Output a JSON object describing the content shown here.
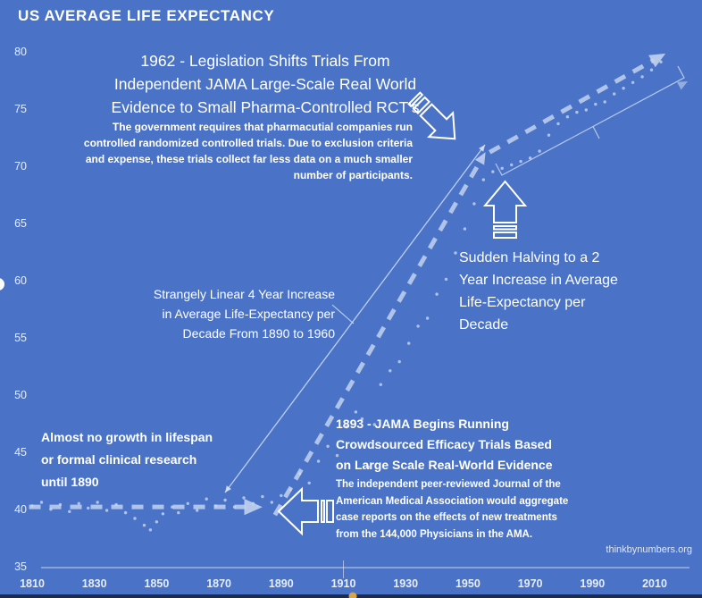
{
  "page": {
    "title": "US AVERAGE LIFE EXPECTANCY",
    "watermark": "thinkbynumbers.org",
    "background_color": "#4A73C8",
    "line_color": "#C2D1EE",
    "dot_color": "#C9D6EF",
    "annotation_line_color": "#DDE6F6",
    "text_color": "#FFFFFF",
    "scrubber_color": "#D9A441"
  },
  "annotations": {
    "legislation_heading": "1962 - Legislation Shifts Trials From\nIndependent JAMA Large-Scale Real World\nEvidence to Small Pharma-Controlled RCT’s",
    "legislation_body": "The government requires that pharmacutial companies run\ncontrolled randomized controlled trials.  Due to exclusion criteria\nand expense, these trials collect far less data on a much smaller\nnumber of participants.",
    "strangely_linear": "Strangely Linear 4 Year Increase\nin Average Life-Expectancy per\nDecade From 1890 to 1960",
    "sudden_halving": "Sudden Halving to a 2\nYear Increase in Average\nLife-Expectancy per\nDecade",
    "no_growth": "Almost no growth in lifespan\nor formal clinical research\nuntil 1890",
    "jama_heading": "1893 - JAMA Begins Running\nCrowdsourced Efficacy Trials Based\non Large Scale Real-World Evidence",
    "jama_body": "The independent peer-reviewed Journal of the\nAmerican Medical Association would aggregate\ncase reports on the effects of new treatments\nfrom the 144,000 Physicians in the AMA."
  },
  "chart_data": {
    "type": "line",
    "title": "US AVERAGE LIFE EXPECTANCY",
    "xlabel": "",
    "ylabel": "",
    "xlim": [
      1810,
      2010
    ],
    "ylim": [
      35,
      80
    ],
    "grid": false,
    "x_ticks": [
      1810,
      1830,
      1850,
      1870,
      1890,
      1910,
      1930,
      1950,
      1970,
      1990,
      2010
    ],
    "y_ticks": [
      80,
      75,
      70,
      65,
      60,
      55,
      50,
      45,
      40,
      35
    ],
    "trend_segments": [
      {
        "name": "flat-1810-to-1890",
        "style": "dashed-arrow",
        "head": 14,
        "points": [
          [
            1809,
            40.3
          ],
          [
            1882,
            40.3
          ]
        ]
      },
      {
        "name": "linear-rise-1890-to-1960",
        "style": "dashed-arrow",
        "head": 9,
        "points": [
          [
            1888,
            39.6
          ],
          [
            1955,
            71.0
          ]
        ]
      },
      {
        "name": "slow-rise-1960-to-2010",
        "style": "dashed-arrow",
        "head": 12,
        "points": [
          [
            1957,
            71.3
          ],
          [
            2012,
            79.7
          ]
        ]
      }
    ],
    "scatter": [
      [
        1810,
        40.4
      ],
      [
        1813,
        40.7
      ],
      [
        1816,
        40.1
      ],
      [
        1819,
        40.5
      ],
      [
        1822,
        39.9
      ],
      [
        1825,
        40.6
      ],
      [
        1828,
        40.2
      ],
      [
        1831,
        40.7
      ],
      [
        1834,
        40.0
      ],
      [
        1837,
        40.5
      ],
      [
        1840,
        39.8
      ],
      [
        1843,
        39.3
      ],
      [
        1846,
        38.7
      ],
      [
        1848,
        38.3
      ],
      [
        1850,
        39.0
      ],
      [
        1852,
        39.7
      ],
      [
        1855,
        40.3
      ],
      [
        1857,
        39.8
      ],
      [
        1860,
        40.6
      ],
      [
        1863,
        40.0
      ],
      [
        1866,
        41.0
      ],
      [
        1869,
        40.4
      ],
      [
        1872,
        40.9
      ],
      [
        1875,
        40.3
      ],
      [
        1878,
        41.1
      ],
      [
        1881,
        40.6
      ],
      [
        1884,
        41.2
      ],
      [
        1887,
        40.7
      ],
      [
        1890,
        41.3
      ],
      [
        1893,
        41.8
      ],
      [
        1896,
        43.2
      ],
      [
        1899,
        42.4
      ],
      [
        1902,
        44.3
      ],
      [
        1905,
        45.6
      ],
      [
        1908,
        44.8
      ],
      [
        1911,
        47.3
      ],
      [
        1914,
        48.6
      ],
      [
        1916,
        48.0
      ],
      [
        1918,
        43.8
      ],
      [
        1920,
        47.5
      ],
      [
        1922,
        51.0
      ],
      [
        1925,
        52.2
      ],
      [
        1928,
        53.0
      ],
      [
        1931,
        54.6
      ],
      [
        1934,
        56.1
      ],
      [
        1937,
        56.8
      ],
      [
        1940,
        58.9
      ],
      [
        1943,
        60.2
      ],
      [
        1946,
        62.5
      ],
      [
        1949,
        64.6
      ],
      [
        1952,
        66.8
      ],
      [
        1955,
        68.9
      ],
      [
        1958,
        69.6
      ],
      [
        1961,
        69.9
      ],
      [
        1964,
        70.2
      ],
      [
        1967,
        70.5
      ],
      [
        1970,
        70.8
      ],
      [
        1973,
        71.4
      ],
      [
        1976,
        72.8
      ],
      [
        1979,
        73.8
      ],
      [
        1982,
        74.4
      ],
      [
        1985,
        74.8
      ],
      [
        1988,
        75.0
      ],
      [
        1991,
        75.5
      ],
      [
        1994,
        75.7
      ],
      [
        1997,
        76.4
      ],
      [
        2000,
        76.9
      ],
      [
        2003,
        77.4
      ],
      [
        2006,
        77.9
      ],
      [
        2009,
        78.5
      ],
      [
        2012,
        79.2
      ]
    ]
  }
}
